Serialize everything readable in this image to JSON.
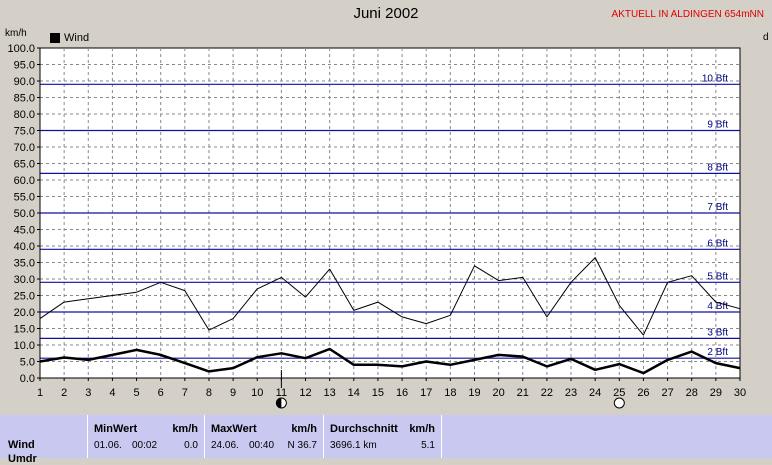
{
  "header": {
    "title": "Juni 2002",
    "station": "AKTUELL IN ALDINGEN 654mNN",
    "unit_left": "km/h",
    "unit_right": "d"
  },
  "legend": {
    "label": "Wind",
    "color": "#000000"
  },
  "chart_data": {
    "type": "line",
    "title": "Juni 2002",
    "ylabel": "km/h",
    "ylim": [
      0,
      100
    ],
    "y_ticks": [
      "0.0",
      "5.0",
      "10.0",
      "15.0",
      "20.0",
      "25.0",
      "30.0",
      "35.0",
      "40.0",
      "45.0",
      "50.0",
      "55.0",
      "60.0",
      "65.0",
      "70.0",
      "75.0",
      "80.0",
      "85.0",
      "90.0",
      "95.0",
      "100.0"
    ],
    "xlim": [
      1,
      30
    ],
    "x": [
      1,
      2,
      3,
      4,
      5,
      6,
      7,
      8,
      9,
      10,
      11,
      12,
      13,
      14,
      15,
      16,
      17,
      18,
      19,
      20,
      21,
      22,
      23,
      24,
      25,
      26,
      27,
      28,
      29,
      30
    ],
    "grid": true,
    "series": [
      {
        "name": "Wind",
        "values": [
          5.0,
          6.2,
          5.5,
          7.0,
          8.5,
          7.0,
          4.5,
          2.0,
          3.0,
          6.3,
          7.5,
          6.0,
          8.8,
          4.0,
          4.0,
          3.5,
          5.0,
          4.0,
          5.5,
          7.0,
          6.5,
          3.5,
          5.8,
          2.5,
          4.2,
          1.5,
          5.5,
          8.0,
          4.5,
          3.0
        ],
        "color": "#000000",
        "width": 2.5
      },
      {
        "values": [
          18.0,
          23.0,
          24.0,
          25.0,
          26.0,
          29.0,
          26.5,
          14.5,
          18.0,
          27.0,
          30.5,
          24.5,
          33.0,
          20.5,
          23.0,
          18.5,
          16.5,
          19.0,
          34.0,
          29.5,
          30.5,
          18.5,
          29.0,
          36.5,
          22.0,
          13.0,
          29.0,
          31.0,
          23.0,
          21.0
        ],
        "color": "#000000",
        "width": 1
      }
    ],
    "beaufort": [
      {
        "label": "2 Bft",
        "value": 6
      },
      {
        "label": "3 Bft",
        "value": 12
      },
      {
        "label": "4 Bft",
        "value": 20
      },
      {
        "label": "5 Bft",
        "value": 29
      },
      {
        "label": "6 Bft",
        "value": 39
      },
      {
        "label": "7 Bft",
        "value": 50
      },
      {
        "label": "8 Bft",
        "value": 62
      },
      {
        "label": "9 Bft",
        "value": 75
      },
      {
        "label": "10 Bft",
        "value": 89
      }
    ],
    "moon_phases": [
      {
        "day": 11,
        "phase": "new-moon"
      },
      {
        "day": 25,
        "phase": "full-moon"
      }
    ],
    "marker_day": 11
  },
  "stats": {
    "row_label": "Wind",
    "row_label2": "Umdr",
    "min": {
      "header": "MinWert",
      "unit": "km/h",
      "date": "01.06.",
      "time": "00:02",
      "value": "0.0"
    },
    "max": {
      "header": "MaxWert",
      "unit": "km/h",
      "date": "24.06.",
      "time": "00:40",
      "value": "N 36.7"
    },
    "avg": {
      "header": "Durchschnitt",
      "unit": "km/h",
      "distance": "3696.1 km",
      "value": "5.1"
    }
  }
}
